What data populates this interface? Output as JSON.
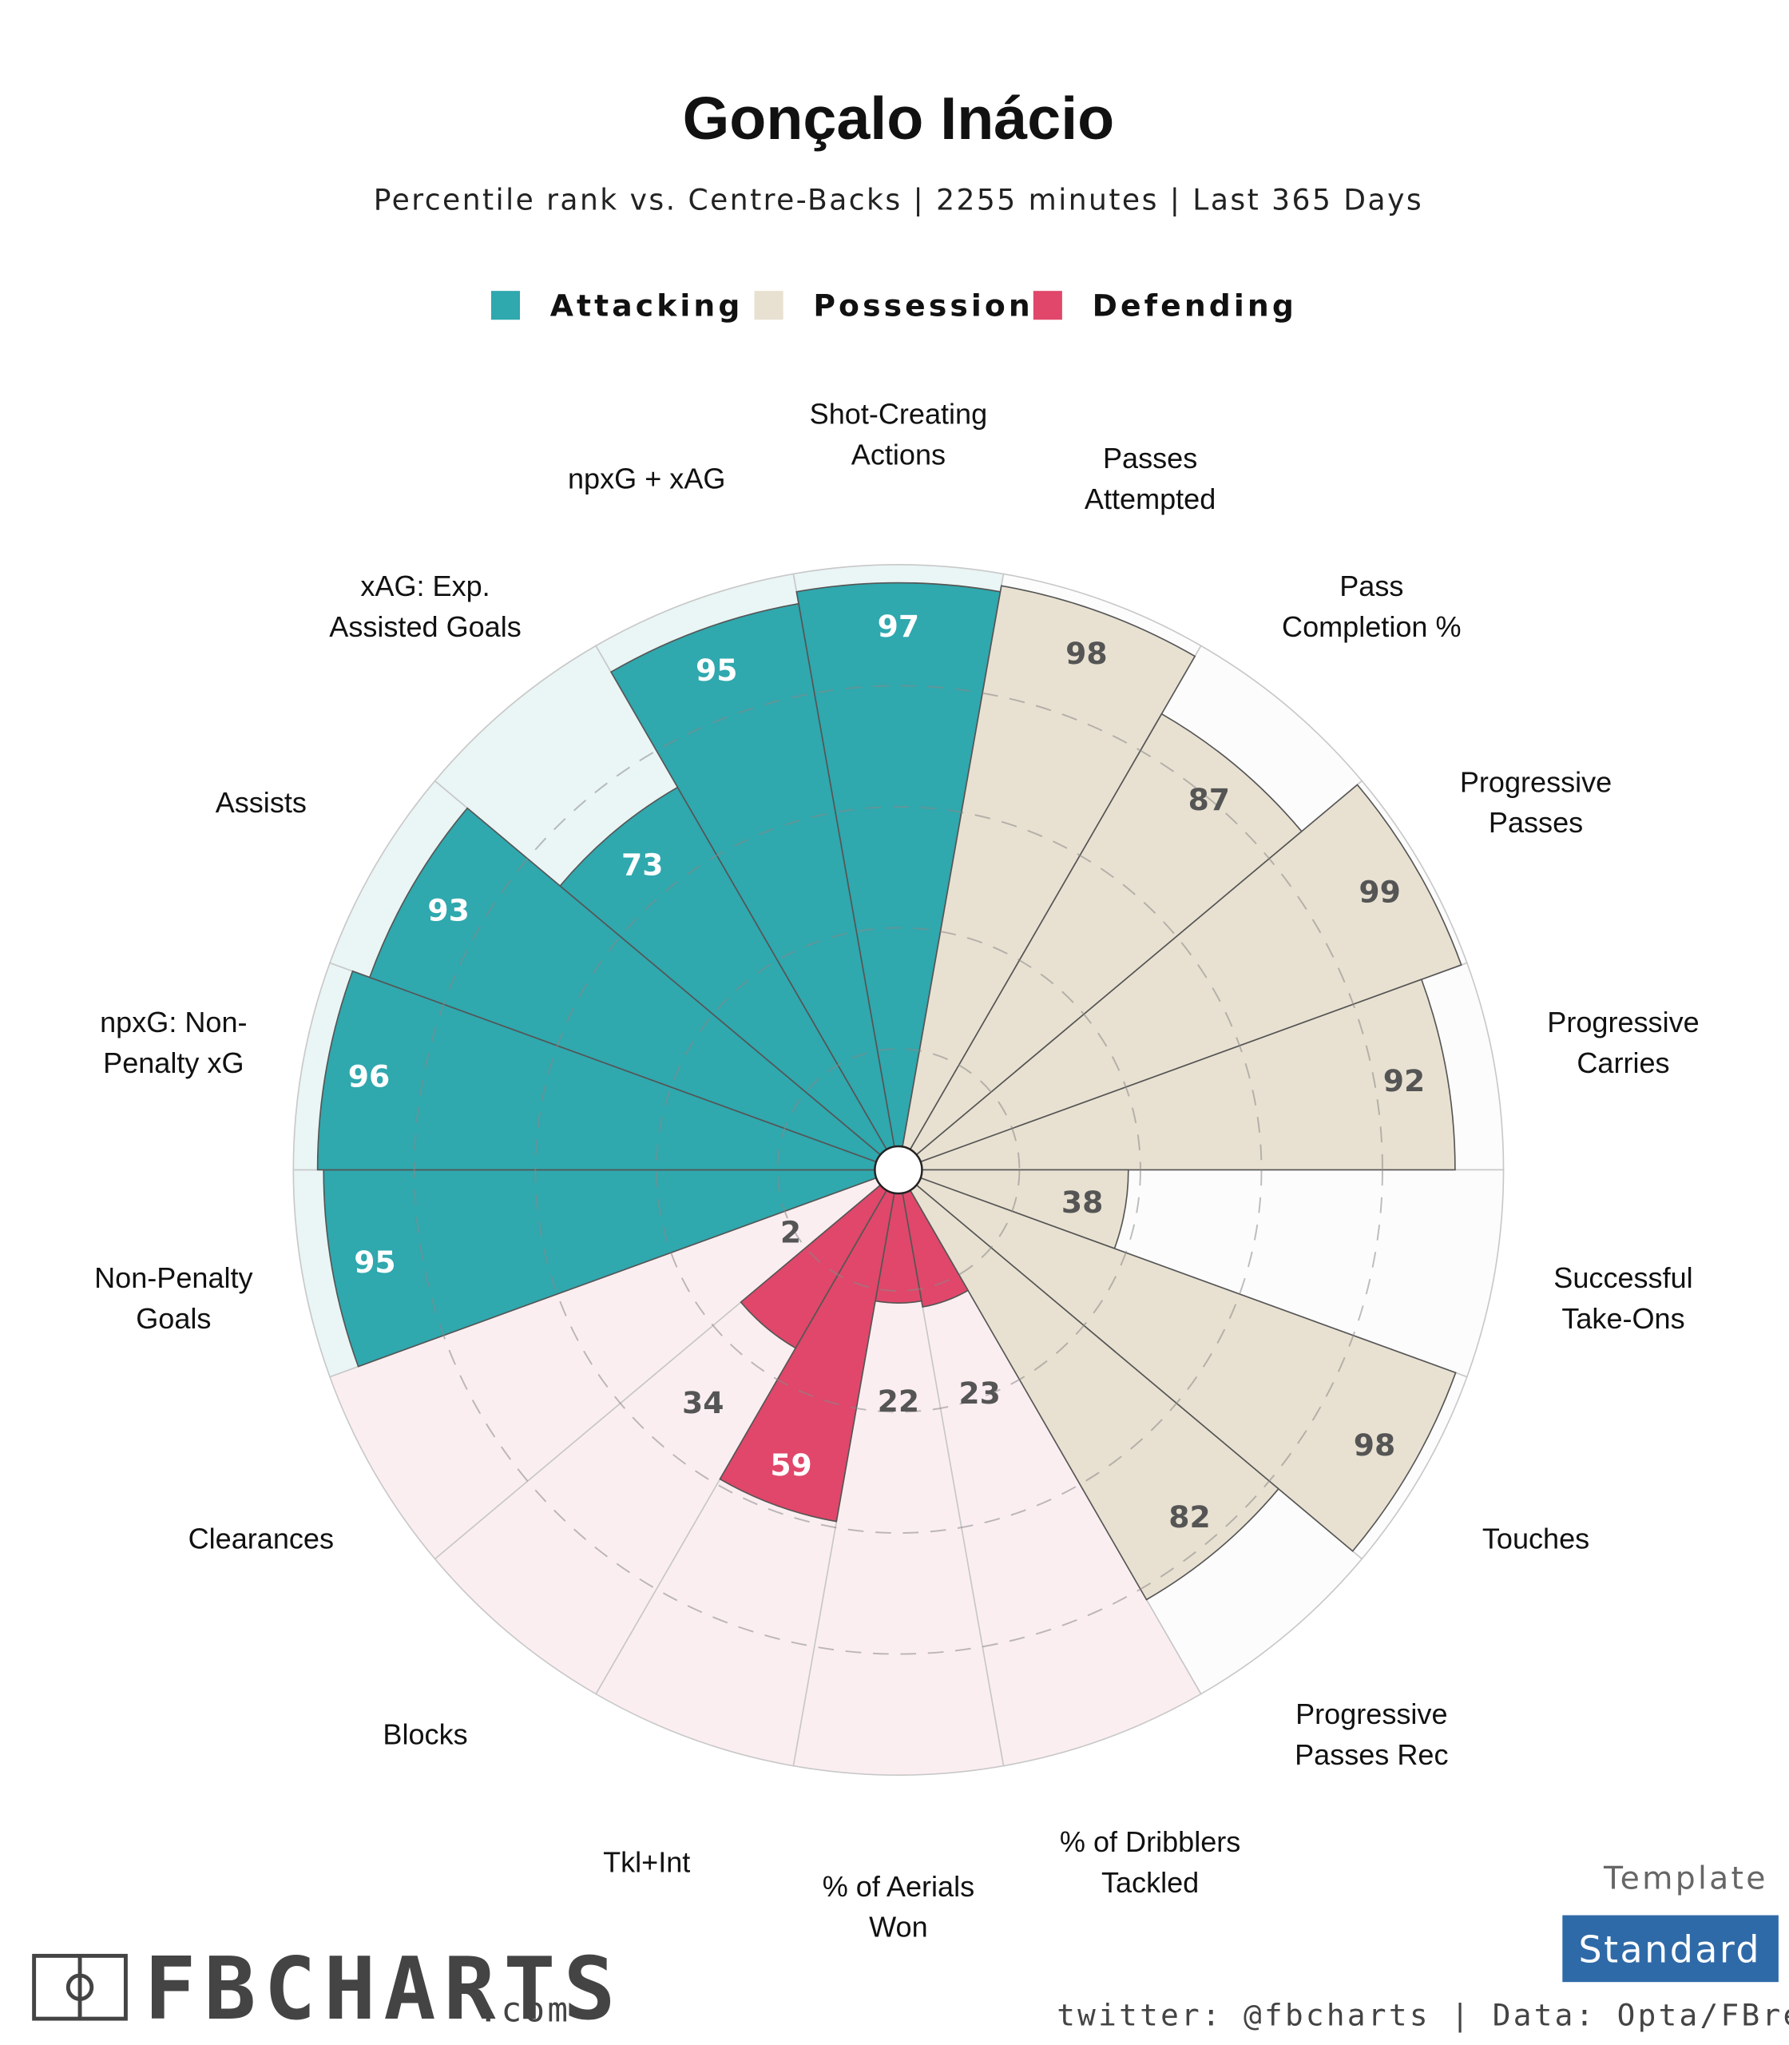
{
  "chart_data": {
    "type": "polar_bar",
    "title": "Gonçalo Inácio",
    "subtitle": "Percentile rank vs. Centre-Backs | 2255 minutes | Last 365 Days",
    "categories": [
      "Shot-Creating Actions",
      "Passes Attempted",
      "Pass Completion %",
      "Progressive Passes",
      "Progressive Carries",
      "Successful Take-Ons",
      "Touches",
      "Progressive Passes Rec",
      "% of Dribblers Tackled",
      "% of Aerials Won",
      "Tkl+Int",
      "Blocks",
      "Clearances",
      "Non-Penalty Goals",
      "npxG: Non-Penalty xG",
      "Assists",
      "xAG: Exp. Assisted Goals",
      "npxG + xAG"
    ],
    "series": [
      {
        "name": "Attacking",
        "color": "#2fa8ae",
        "background": "#eaf5f5",
        "label_color": "#ffffff",
        "values": [
          97,
          null,
          null,
          null,
          null,
          null,
          null,
          null,
          null,
          null,
          null,
          null,
          null,
          95,
          96,
          93,
          73,
          95
        ]
      },
      {
        "name": "Possession",
        "color": "#e8e1d1",
        "background": "#fcfcfc",
        "label_color": "#555555",
        "values": [
          null,
          98,
          87,
          99,
          92,
          38,
          98,
          82,
          null,
          null,
          null,
          null,
          null,
          null,
          null,
          null,
          null,
          null
        ]
      },
      {
        "name": "Defending",
        "color": "#e0476a",
        "background": "#fbeef1",
        "label_color": "#ffffff",
        "values": [
          null,
          null,
          null,
          null,
          null,
          null,
          null,
          null,
          23,
          22,
          59,
          34,
          2,
          null,
          null,
          null,
          null,
          null
        ]
      }
    ],
    "rlim": [
      0,
      100
    ],
    "rticks": [
      20,
      40,
      60,
      80
    ],
    "legend_position": "top",
    "footer": {
      "template_label": "Template",
      "template": "Standard",
      "credit": "twitter: @fbcharts | Data: Opta/FBref",
      "brand": "FBCHARTS",
      "brand_suffix": ".com"
    }
  }
}
